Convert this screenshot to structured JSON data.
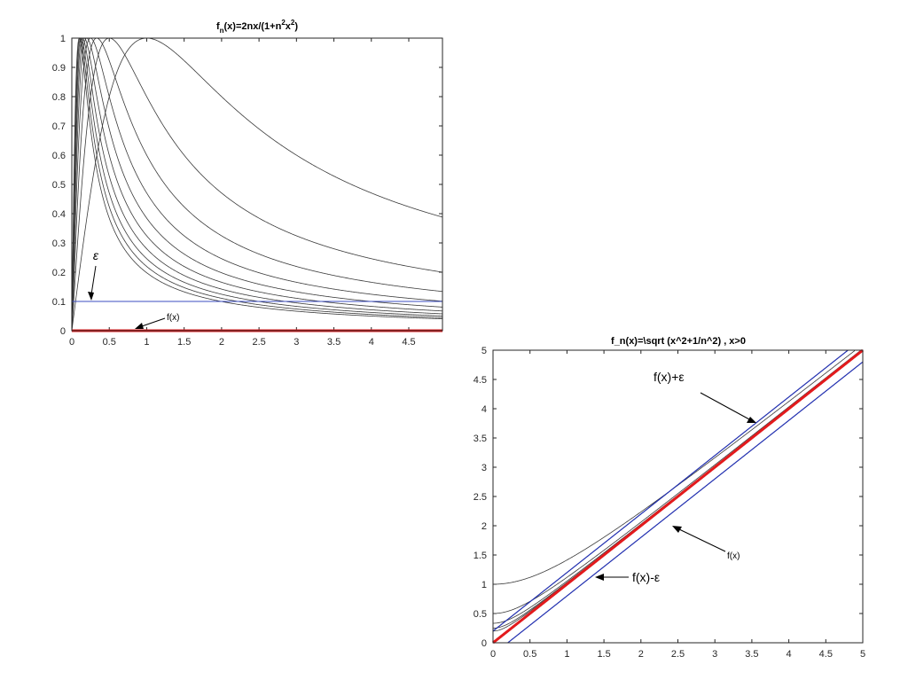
{
  "chart_data": [
    {
      "type": "line",
      "title_main": "f",
      "title_sub": "n",
      "title_mid": "(x)=2nx/(1+n",
      "title_sup1": "2",
      "title_x": "x",
      "title_sup2": "2",
      "title_end": ")",
      "xlim": [
        0,
        5
      ],
      "ylim": [
        0,
        1
      ],
      "xticks": [
        "0",
        "0.5",
        "1",
        "1.5",
        "2",
        "2.5",
        "3",
        "3.5",
        "4",
        "4.5"
      ],
      "yticks": [
        "0",
        "0.1",
        "0.2",
        "0.3",
        "0.4",
        "0.5",
        "0.6",
        "0.7",
        "0.8",
        "0.9",
        "1"
      ],
      "series": [
        {
          "formula": "2nx/(1+n^2x^2)",
          "n_values": [
            1,
            2,
            3,
            4,
            5,
            6,
            7,
            8,
            9,
            10
          ],
          "color": "#3a3a3a"
        },
        {
          "label": "f(x)",
          "formula": "0",
          "color": "#e31a1c"
        },
        {
          "label": "ε",
          "formula": "0.1",
          "color": "#3b4cc0"
        }
      ],
      "annotations": [
        {
          "text": "ε",
          "points_to": [
            0.25,
            0.1
          ]
        },
        {
          "text": "f(x)",
          "points_to": [
            0.8,
            0.0
          ]
        }
      ],
      "grid": false
    },
    {
      "type": "line",
      "title": "f_n(x)=\\sqrt (x^2+1/n^2) , x>0",
      "xlim": [
        0,
        5
      ],
      "ylim": [
        0,
        5
      ],
      "xticks": [
        "0",
        "0.5",
        "1",
        "1.5",
        "2",
        "2.5",
        "3",
        "3.5",
        "4",
        "4.5",
        "5"
      ],
      "yticks": [
        "0",
        "0.5",
        "1",
        "1.5",
        "2",
        "2.5",
        "3",
        "3.5",
        "4",
        "4.5",
        "5"
      ],
      "series": [
        {
          "formula": "sqrt(x^2+1/n^2)",
          "n_values": [
            1,
            2,
            3,
            4,
            5
          ],
          "color": "#3a3a3a"
        },
        {
          "label": "f(x)",
          "formula": "x",
          "color": "#e31a1c"
        },
        {
          "label": "f(x)+ε",
          "formula": "x+0.2",
          "color": "#2230b0"
        },
        {
          "label": "f(x)-ε",
          "formula": "x-0.2",
          "color": "#2230b0"
        }
      ],
      "annotations": [
        {
          "text": "f(x)+ε",
          "points_to": [
            3.55,
            3.75
          ]
        },
        {
          "text": "f(x)",
          "points_to": [
            2.45,
            1.95
          ]
        },
        {
          "text": "f(x)-ε",
          "points_to": [
            1.35,
            1.1
          ]
        }
      ],
      "grid": false
    }
  ]
}
